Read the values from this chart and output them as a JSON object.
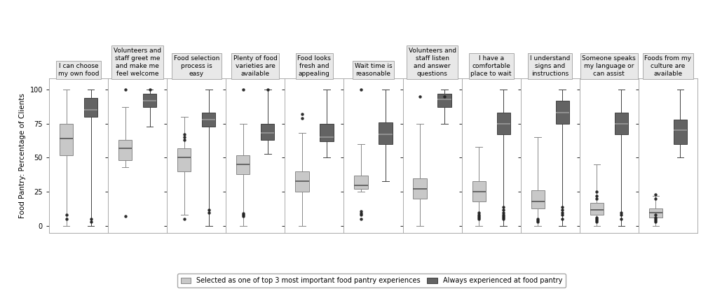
{
  "categories": [
    "I can choose\nmy own food",
    "Volunteers and\nstaff greet me\nand make me\nfeel welcome",
    "Food selection\nprocess is\neasy",
    "Plenty of food\nvarieties are\navailable",
    "Food looks\nfresh and\nappealing",
    "Wait time is\nreasonable",
    "Volunteers and\nstaff listen\nand answer\nquestions",
    "I have a\ncomfortable\nplace to wait",
    "I understand\nsigns and\ninstructions",
    "Someone speaks\nmy language or\ncan assist",
    "Foods from my\nculture are\navailable"
  ],
  "light_boxes": [
    {
      "whislo": 0,
      "q1": 52,
      "med": 64,
      "q3": 75,
      "whishi": 100,
      "fliers": [
        5,
        8
      ]
    },
    {
      "whislo": 43,
      "q1": 48,
      "med": 57,
      "q3": 63,
      "whishi": 87,
      "fliers": [
        7,
        100
      ]
    },
    {
      "whislo": 8,
      "q1": 40,
      "med": 50,
      "q3": 57,
      "whishi": 80,
      "fliers": [
        5,
        63,
        65,
        67
      ]
    },
    {
      "whislo": 0,
      "q1": 38,
      "med": 45,
      "q3": 52,
      "whishi": 75,
      "fliers": [
        7,
        8,
        9,
        100
      ]
    },
    {
      "whislo": 0,
      "q1": 25,
      "med": 33,
      "q3": 40,
      "whishi": 68,
      "fliers": [
        79,
        82
      ]
    },
    {
      "whislo": 25,
      "q1": 27,
      "med": 30,
      "q3": 37,
      "whishi": 60,
      "fliers": [
        5,
        8,
        9,
        11,
        100
      ]
    },
    {
      "whislo": 0,
      "q1": 20,
      "med": 27,
      "q3": 35,
      "whishi": 75,
      "fliers": [
        95
      ]
    },
    {
      "whislo": 0,
      "q1": 18,
      "med": 25,
      "q3": 33,
      "whishi": 58,
      "fliers": [
        5,
        6,
        7,
        8,
        10
      ]
    },
    {
      "whislo": 0,
      "q1": 13,
      "med": 18,
      "q3": 26,
      "whishi": 65,
      "fliers": [
        3,
        4,
        5
      ]
    },
    {
      "whislo": 0,
      "q1": 8,
      "med": 12,
      "q3": 17,
      "whishi": 45,
      "fliers": [
        3,
        4,
        5,
        6,
        20,
        22,
        25
      ]
    },
    {
      "whislo": 0,
      "q1": 6,
      "med": 10,
      "q3": 13,
      "whishi": 22,
      "fliers": [
        3,
        4,
        5,
        6,
        8,
        20,
        23
      ]
    }
  ],
  "dark_boxes": [
    {
      "whislo": 0,
      "q1": 80,
      "med": 85,
      "q3": 94,
      "whishi": 100,
      "fliers": [
        3,
        5
      ]
    },
    {
      "whislo": 73,
      "q1": 87,
      "med": 92,
      "q3": 97,
      "whishi": 100,
      "fliers": [
        100
      ]
    },
    {
      "whislo": 0,
      "q1": 73,
      "med": 78,
      "q3": 83,
      "whishi": 100,
      "fliers": [
        10,
        12
      ]
    },
    {
      "whislo": 53,
      "q1": 63,
      "med": 68,
      "q3": 75,
      "whishi": 100,
      "fliers": [
        100
      ]
    },
    {
      "whislo": 50,
      "q1": 62,
      "med": 65,
      "q3": 75,
      "whishi": 100,
      "fliers": []
    },
    {
      "whislo": 33,
      "q1": 60,
      "med": 67,
      "q3": 76,
      "whishi": 100,
      "fliers": []
    },
    {
      "whislo": 75,
      "q1": 87,
      "med": 93,
      "q3": 97,
      "whishi": 100,
      "fliers": [
        95
      ]
    },
    {
      "whislo": 0,
      "q1": 67,
      "med": 75,
      "q3": 83,
      "whishi": 100,
      "fliers": [
        5,
        6,
        7,
        8,
        10,
        12,
        14
      ]
    },
    {
      "whislo": 0,
      "q1": 75,
      "med": 83,
      "q3": 92,
      "whishi": 100,
      "fliers": [
        5,
        8,
        10,
        12,
        14
      ]
    },
    {
      "whislo": 0,
      "q1": 67,
      "med": 75,
      "q3": 83,
      "whishi": 100,
      "fliers": [
        5,
        8,
        10
      ]
    },
    {
      "whislo": 50,
      "q1": 60,
      "med": 70,
      "q3": 78,
      "whishi": 100,
      "fliers": []
    }
  ],
  "light_color": "#c8c8c8",
  "dark_color": "#636363",
  "light_edge": "#888888",
  "dark_edge": "#404040",
  "median_light_color": "#555555",
  "median_dark_color": "#999999",
  "ylabel": "Food Pantry: Percentage of Clients",
  "ylim": [
    -5,
    108
  ],
  "yticks": [
    0,
    25,
    50,
    75,
    100
  ],
  "legend_light_label": "Selected as one of top 3 most important food pantry experiences",
  "legend_dark_label": "Always experienced at food pantry",
  "figsize": [
    10.0,
    4.16
  ],
  "dpi": 100
}
